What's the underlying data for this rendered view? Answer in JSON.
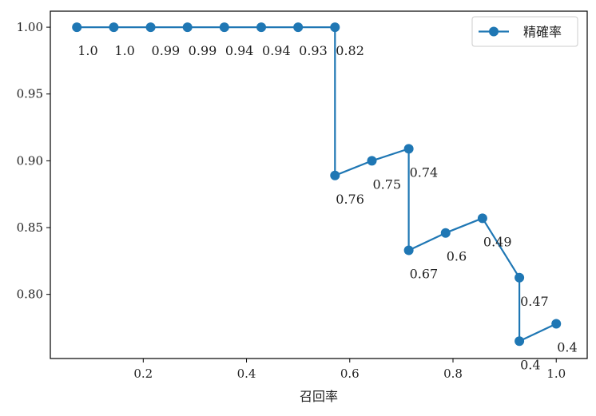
{
  "chart_data": {
    "type": "line",
    "title": "",
    "xlabel": "召回率",
    "ylabel": "",
    "xlim": [
      0.02,
      1.06
    ],
    "ylim": [
      0.752,
      1.012
    ],
    "xticks": [
      0.2,
      0.4,
      0.6,
      0.8,
      1.0
    ],
    "xtick_labels": [
      "0.2",
      "0.4",
      "0.6",
      "0.8",
      "1.0"
    ],
    "yticks": [
      0.8,
      0.85,
      0.9,
      0.95,
      1.0
    ],
    "ytick_labels": [
      "0.80",
      "0.85",
      "0.90",
      "0.95",
      "1.00"
    ],
    "grid": false,
    "legend_position": "top-right",
    "series": [
      {
        "name": "精確率",
        "color": "#1f77b4",
        "step_style": "vertical-then-horizontal",
        "x": [
          0.0714,
          0.1429,
          0.2143,
          0.2857,
          0.3571,
          0.4286,
          0.5,
          0.5714,
          0.5714,
          0.6429,
          0.7143,
          0.7143,
          0.7857,
          0.8571,
          0.9286,
          0.9286,
          1.0
        ],
        "y": [
          1.0,
          1.0,
          1.0,
          1.0,
          1.0,
          1.0,
          1.0,
          1.0,
          0.889,
          0.9,
          0.909,
          0.833,
          0.846,
          0.857,
          0.8125,
          0.765,
          0.778
        ]
      }
    ],
    "annotations": [
      {
        "x": 0.0714,
        "y": 1.0,
        "text": "1.0"
      },
      {
        "x": 0.1429,
        "y": 1.0,
        "text": "1.0"
      },
      {
        "x": 0.2143,
        "y": 1.0,
        "text": "0.99"
      },
      {
        "x": 0.2857,
        "y": 1.0,
        "text": "0.99"
      },
      {
        "x": 0.3571,
        "y": 1.0,
        "text": "0.94"
      },
      {
        "x": 0.4286,
        "y": 1.0,
        "text": "0.94"
      },
      {
        "x": 0.5,
        "y": 1.0,
        "text": "0.93"
      },
      {
        "x": 0.5714,
        "y": 1.0,
        "text": "0.82"
      },
      {
        "x": 0.5714,
        "y": 0.889,
        "text": "0.76"
      },
      {
        "x": 0.6429,
        "y": 0.9,
        "text": "0.75"
      },
      {
        "x": 0.7143,
        "y": 0.909,
        "text": "0.74"
      },
      {
        "x": 0.7143,
        "y": 0.833,
        "text": "0.67"
      },
      {
        "x": 0.7857,
        "y": 0.846,
        "text": "0.6"
      },
      {
        "x": 0.8571,
        "y": 0.857,
        "text": "0.49"
      },
      {
        "x": 0.9286,
        "y": 0.8125,
        "text": "0.47"
      },
      {
        "x": 0.9286,
        "y": 0.765,
        "text": "0.4"
      },
      {
        "x": 1.0,
        "y": 0.778,
        "text": "0.4"
      }
    ]
  }
}
